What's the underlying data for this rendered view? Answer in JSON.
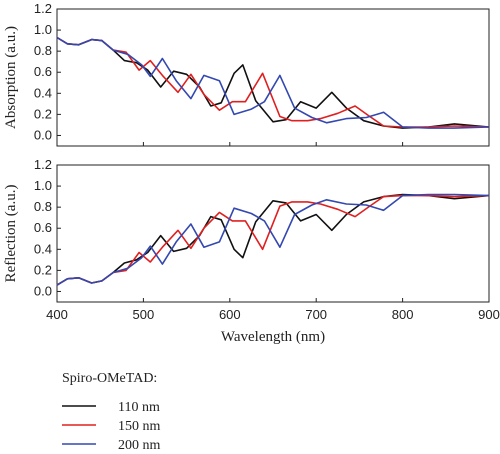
{
  "chart_data": [
    {
      "type": "line",
      "ylabel": "Absorption (a.u.)",
      "xlabel": "",
      "xlim": [
        400,
        900
      ],
      "ylim": [
        -0.1,
        1.2
      ],
      "yticks": [
        "0.0",
        "0.2",
        "0.4",
        "0.6",
        "0.8",
        "1.0",
        "1.2"
      ],
      "series": [
        {
          "name": "110 nm",
          "color": "#111111",
          "x": [
            400,
            412,
            425,
            440,
            452,
            465,
            478,
            492,
            505,
            520,
            535,
            550,
            565,
            578,
            590,
            605,
            615,
            630,
            650,
            665,
            682,
            700,
            718,
            735,
            755,
            778,
            800,
            830,
            860,
            900
          ],
          "y": [
            0.93,
            0.87,
            0.86,
            0.91,
            0.9,
            0.81,
            0.71,
            0.69,
            0.62,
            0.46,
            0.61,
            0.58,
            0.46,
            0.28,
            0.31,
            0.59,
            0.67,
            0.33,
            0.13,
            0.15,
            0.32,
            0.26,
            0.41,
            0.26,
            0.14,
            0.09,
            0.07,
            0.08,
            0.11,
            0.08
          ]
        },
        {
          "name": "150 nm",
          "color": "#e02020",
          "x": [
            400,
            412,
            425,
            440,
            452,
            465,
            480,
            495,
            508,
            522,
            540,
            555,
            570,
            588,
            603,
            618,
            638,
            658,
            672,
            690,
            705,
            725,
            745,
            762,
            778,
            800,
            830,
            860,
            900
          ],
          "y": [
            0.93,
            0.87,
            0.86,
            0.91,
            0.9,
            0.81,
            0.79,
            0.62,
            0.71,
            0.57,
            0.41,
            0.58,
            0.39,
            0.24,
            0.32,
            0.32,
            0.59,
            0.18,
            0.14,
            0.14,
            0.16,
            0.21,
            0.28,
            0.18,
            0.09,
            0.08,
            0.08,
            0.09,
            0.08
          ]
        },
        {
          "name": "200 nm",
          "color": "#3348b0",
          "x": [
            400,
            412,
            425,
            440,
            452,
            465,
            482,
            498,
            508,
            522,
            538,
            555,
            570,
            588,
            605,
            625,
            640,
            658,
            675,
            695,
            712,
            735,
            758,
            778,
            800,
            830,
            860,
            900
          ],
          "y": [
            0.93,
            0.87,
            0.86,
            0.91,
            0.9,
            0.81,
            0.77,
            0.67,
            0.56,
            0.73,
            0.52,
            0.35,
            0.57,
            0.52,
            0.2,
            0.25,
            0.32,
            0.57,
            0.26,
            0.17,
            0.12,
            0.16,
            0.17,
            0.22,
            0.08,
            0.07,
            0.07,
            0.08
          ]
        }
      ]
    },
    {
      "type": "line",
      "ylabel": "Reflection (a.u.)",
      "xlabel": "Wavelength (nm)",
      "xlim": [
        400,
        900
      ],
      "ylim": [
        -0.1,
        1.2
      ],
      "xticks": [
        "400",
        "500",
        "600",
        "700",
        "800",
        "900"
      ],
      "yticks": [
        "0.0",
        "0.2",
        "0.4",
        "0.6",
        "0.8",
        "1.0",
        "1.2"
      ],
      "series": [
        {
          "name": "110 nm",
          "color": "#111111",
          "x": [
            400,
            412,
            425,
            440,
            452,
            465,
            478,
            492,
            505,
            520,
            535,
            550,
            565,
            578,
            590,
            605,
            615,
            630,
            650,
            665,
            682,
            700,
            718,
            735,
            755,
            778,
            800,
            830,
            860,
            900
          ],
          "y": [
            0.06,
            0.12,
            0.13,
            0.08,
            0.1,
            0.18,
            0.27,
            0.3,
            0.37,
            0.53,
            0.38,
            0.41,
            0.53,
            0.71,
            0.68,
            0.4,
            0.32,
            0.66,
            0.86,
            0.84,
            0.67,
            0.73,
            0.58,
            0.73,
            0.85,
            0.9,
            0.92,
            0.91,
            0.88,
            0.91
          ]
        },
        {
          "name": "150 nm",
          "color": "#e02020",
          "x": [
            400,
            412,
            425,
            440,
            452,
            465,
            480,
            495,
            508,
            522,
            540,
            555,
            570,
            588,
            603,
            618,
            638,
            658,
            672,
            690,
            705,
            725,
            745,
            762,
            778,
            800,
            830,
            860,
            900
          ],
          "y": [
            0.06,
            0.12,
            0.13,
            0.08,
            0.1,
            0.18,
            0.2,
            0.37,
            0.28,
            0.42,
            0.58,
            0.41,
            0.6,
            0.75,
            0.67,
            0.67,
            0.4,
            0.81,
            0.85,
            0.85,
            0.83,
            0.78,
            0.71,
            0.81,
            0.9,
            0.91,
            0.91,
            0.9,
            0.91
          ]
        },
        {
          "name": "200 nm",
          "color": "#3348b0",
          "x": [
            400,
            412,
            425,
            440,
            452,
            465,
            482,
            498,
            508,
            522,
            538,
            555,
            570,
            588,
            605,
            625,
            640,
            658,
            675,
            695,
            712,
            735,
            758,
            778,
            800,
            830,
            860,
            900
          ],
          "y": [
            0.06,
            0.12,
            0.13,
            0.08,
            0.1,
            0.18,
            0.22,
            0.32,
            0.43,
            0.26,
            0.47,
            0.64,
            0.42,
            0.47,
            0.79,
            0.74,
            0.67,
            0.42,
            0.73,
            0.82,
            0.87,
            0.83,
            0.82,
            0.77,
            0.91,
            0.92,
            0.92,
            0.91
          ]
        }
      ]
    }
  ],
  "legend": {
    "title": "Spiro-OMeTAD:",
    "items": [
      {
        "label": "110 nm",
        "color": "#111111"
      },
      {
        "label": "150 nm",
        "color": "#e02020"
      },
      {
        "label": "200 nm",
        "color": "#3348b0"
      }
    ]
  }
}
